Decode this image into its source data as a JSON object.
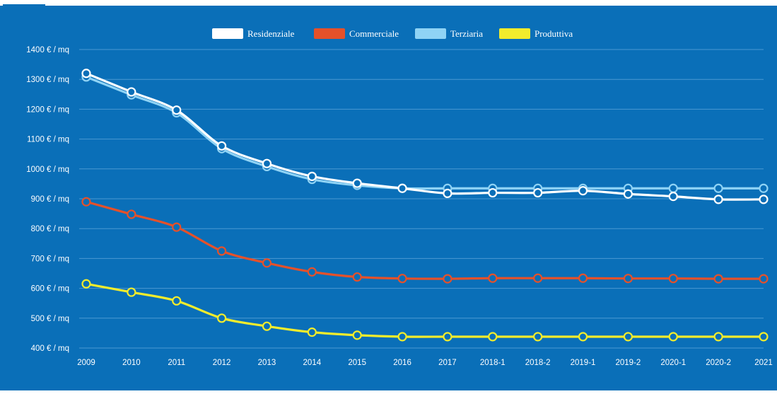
{
  "chart_data": {
    "type": "line",
    "categories": [
      "2009",
      "2010",
      "2011",
      "2012",
      "2013",
      "2014",
      "2015",
      "2016",
      "2017",
      "2018-1",
      "2018-2",
      "2019-1",
      "2019-2",
      "2020-1",
      "2020-2",
      "2021"
    ],
    "ylim": [
      400,
      1400
    ],
    "y_ticks": [
      400,
      500,
      600,
      700,
      800,
      900,
      1000,
      1100,
      1200,
      1300,
      1400
    ],
    "y_tick_labels": [
      "400 € / mq",
      "500 € / mq",
      "600 € / mq",
      "700 € / mq",
      "800 € / mq",
      "900 € / mq",
      "1000 € / mq",
      "1100 € / mq",
      "1200 € / mq",
      "1300 € / mq",
      "1400 € / mq"
    ],
    "grid": true,
    "legend_position": "top-center",
    "series": [
      {
        "name": "Residenziale",
        "color": "#ffffff",
        "values": [
          1320,
          1258,
          1197,
          1077,
          1018,
          975,
          952,
          935,
          918,
          920,
          920,
          927,
          916,
          908,
          898,
          898
        ]
      },
      {
        "name": "Commerciale",
        "color": "#e5512a",
        "values": [
          890,
          848,
          805,
          725,
          685,
          655,
          638,
          633,
          632,
          634,
          634,
          634,
          633,
          633,
          632,
          632
        ]
      },
      {
        "name": "Terziaria",
        "color": "#8fd3f5",
        "values": [
          1308,
          1248,
          1188,
          1068,
          1008,
          965,
          945,
          935,
          935,
          935,
          935,
          935,
          935,
          935,
          935,
          935
        ]
      },
      {
        "name": "Produttiva",
        "color": "#f2ec2c",
        "values": [
          615,
          587,
          558,
          500,
          473,
          453,
          443,
          438,
          438,
          438,
          438,
          438,
          438,
          438,
          438,
          438
        ]
      }
    ]
  }
}
